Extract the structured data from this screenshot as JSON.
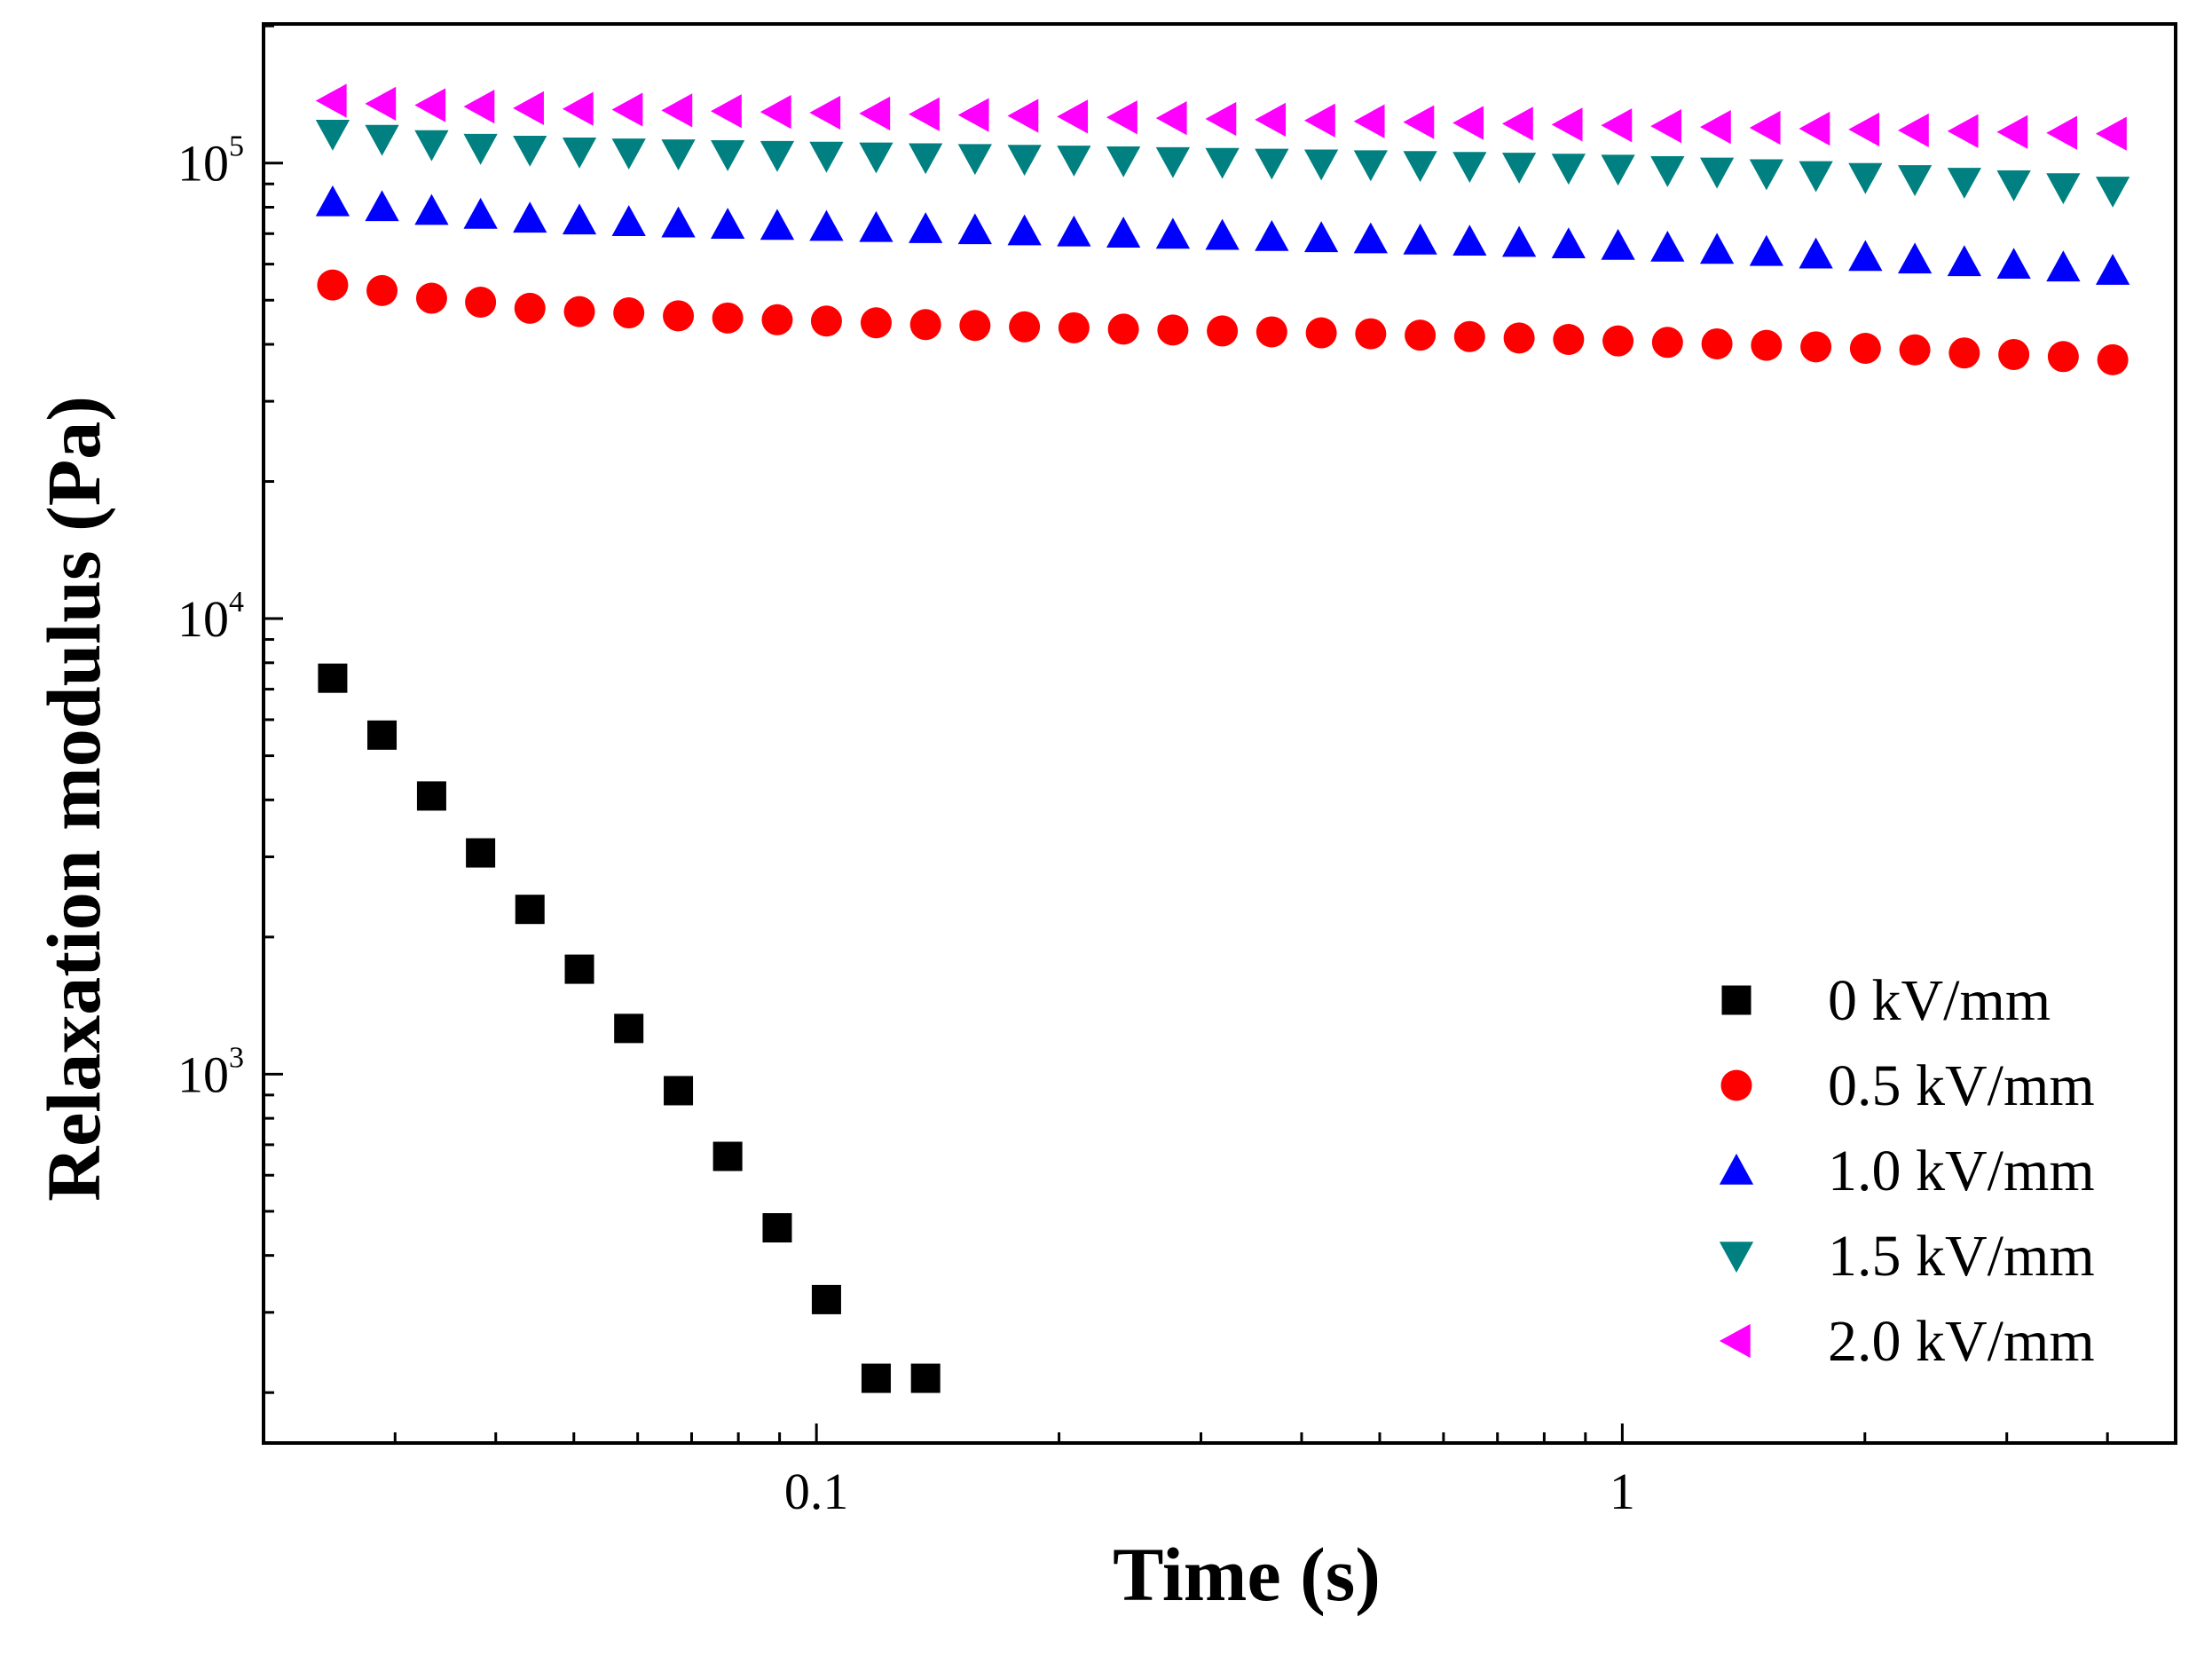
{
  "chart_data": {
    "type": "scatter",
    "title": "",
    "xlabel": "Time (s)",
    "ylabel": "Relaxation modulus (Pa)",
    "xscale": "log",
    "yscale": "log",
    "xlim": [
      0.0206,
      4.86
    ],
    "ylim": [
      155,
      202000
    ],
    "x_ticks": [
      {
        "value": 0.1,
        "label": "0.1"
      },
      {
        "value": 1,
        "label": "1"
      }
    ],
    "y_ticks": [
      {
        "value": 1000,
        "base": "10",
        "exp": "3"
      },
      {
        "value": 10000,
        "base": "10",
        "exp": "4"
      },
      {
        "value": 100000,
        "base": "10",
        "exp": "5"
      }
    ],
    "legend_position": "bottom-right",
    "series": [
      {
        "name": "0 kV/mm",
        "marker": "square",
        "color": "#000000",
        "x": [
          0.0251,
          0.0289,
          0.0333,
          0.0383,
          0.0441,
          0.0508,
          0.0585,
          0.0674,
          0.0776,
          0.0894,
          0.1029,
          0.1186,
          0.1366
        ],
        "y": [
          7400,
          5550,
          4080,
          3060,
          2300,
          1700,
          1260,
          920,
          660,
          460,
          320,
          215,
          215
        ]
      },
      {
        "name": "0.5 kV/mm",
        "marker": "circle",
        "color": "#ff0000",
        "x": [
          0.0251,
          0.0289,
          0.0333,
          0.0383,
          0.0441,
          0.0508,
          0.0585,
          0.0674,
          0.0776,
          0.0894,
          0.1029,
          0.1186,
          0.1366,
          0.1573,
          0.1812,
          0.2087,
          0.2404,
          0.2769,
          0.3189,
          0.3673,
          0.4231,
          0.4873,
          0.5613,
          0.6465,
          0.7447,
          0.8577,
          0.9879,
          1.1379,
          1.3107,
          1.5097,
          1.7389,
          2.0029,
          2.307,
          2.6573,
          3.0608,
          3.5255,
          4.0608
        ],
        "y": [
          54000,
          52500,
          50500,
          49500,
          48000,
          47200,
          46900,
          46200,
          45700,
          45300,
          45000,
          44600,
          44200,
          44000,
          43700,
          43500,
          43200,
          43000,
          42800,
          42600,
          42400,
          42200,
          41900,
          41600,
          41300,
          41000,
          40700,
          40400,
          40100,
          39800,
          39500,
          39200,
          38900,
          38300,
          38000,
          37600,
          37000
        ]
      },
      {
        "name": "1.0 kV/mm",
        "marker": "triangle-up",
        "color": "#0000ff",
        "x": [
          0.0251,
          0.0289,
          0.0333,
          0.0383,
          0.0441,
          0.0508,
          0.0585,
          0.0674,
          0.0776,
          0.0894,
          0.1029,
          0.1186,
          0.1366,
          0.1573,
          0.1812,
          0.2087,
          0.2404,
          0.2769,
          0.3189,
          0.3673,
          0.4231,
          0.4873,
          0.5613,
          0.6465,
          0.7447,
          0.8577,
          0.9879,
          1.1379,
          1.3107,
          1.5097,
          1.7389,
          2.0029,
          2.307,
          2.6573,
          3.0608,
          3.5255,
          4.0608
        ],
        "y": [
          82000,
          80000,
          78500,
          77000,
          75500,
          74800,
          74200,
          73700,
          73200,
          72800,
          72400,
          72000,
          71600,
          71200,
          70800,
          70400,
          70000,
          69600,
          69200,
          68800,
          68400,
          68000,
          67600,
          67200,
          66800,
          66300,
          65800,
          65200,
          64500,
          63800,
          63000,
          62200,
          61400,
          60600,
          59800,
          59000,
          58000
        ]
      },
      {
        "name": "1.5 kV/mm",
        "marker": "triangle-down",
        "color": "#008080",
        "x": [
          0.0251,
          0.0289,
          0.0333,
          0.0383,
          0.0441,
          0.0508,
          0.0585,
          0.0674,
          0.0776,
          0.0894,
          0.1029,
          0.1186,
          0.1366,
          0.1573,
          0.1812,
          0.2087,
          0.2404,
          0.2769,
          0.3189,
          0.3673,
          0.4231,
          0.4873,
          0.5613,
          0.6465,
          0.7447,
          0.8577,
          0.9879,
          1.1379,
          1.3107,
          1.5097,
          1.7389,
          2.0029,
          2.307,
          2.6573,
          3.0608,
          3.5255,
          4.0608
        ],
        "y": [
          116000,
          113000,
          110000,
          108000,
          107000,
          106000,
          105500,
          105000,
          104600,
          104200,
          103800,
          103400,
          103000,
          102600,
          102200,
          101800,
          101400,
          101000,
          100600,
          100200,
          99800,
          99400,
          99000,
          98600,
          98200,
          97700,
          97200,
          96500,
          95800,
          95000,
          94100,
          93200,
          92200,
          91000,
          89800,
          88500,
          87000
        ]
      },
      {
        "name": "2.0 kV/mm",
        "marker": "triangle-left",
        "color": "#ff00ff",
        "x": [
          0.0251,
          0.0289,
          0.0333,
          0.0383,
          0.0441,
          0.0508,
          0.0585,
          0.0674,
          0.0776,
          0.0894,
          0.1029,
          0.1186,
          0.1366,
          0.1573,
          0.1812,
          0.2087,
          0.2404,
          0.2769,
          0.3189,
          0.3673,
          0.4231,
          0.4873,
          0.5613,
          0.6465,
          0.7447,
          0.8577,
          0.9879,
          1.1379,
          1.3107,
          1.5097,
          1.7389,
          2.0029,
          2.307,
          2.6573,
          3.0608,
          3.5255,
          4.0608
        ],
        "y": [
          137000,
          135000,
          134000,
          133000,
          132000,
          131500,
          131000,
          130500,
          130000,
          129500,
          129000,
          128500,
          128000,
          127500,
          127000,
          126500,
          126000,
          125500,
          125000,
          124500,
          124000,
          123500,
          123000,
          122500,
          122000,
          121500,
          121000,
          120500,
          120000,
          119500,
          119000,
          118500,
          118000,
          117500,
          117000,
          116500,
          116000
        ]
      }
    ]
  }
}
